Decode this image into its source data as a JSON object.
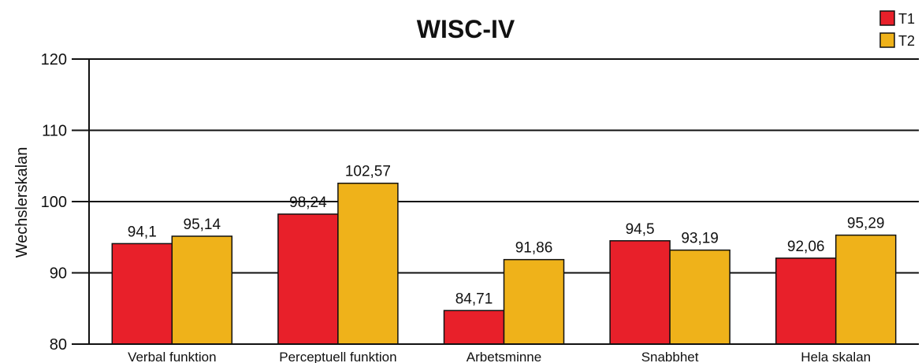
{
  "chart_data": {
    "type": "bar",
    "title": "WISC-IV",
    "ylabel": "Wechslerskalan",
    "xlabel": "",
    "ylim": [
      80,
      120
    ],
    "yticks": [
      80,
      90,
      100,
      110,
      120
    ],
    "grid": true,
    "legend_position": "top-right",
    "categories": [
      "Verbal funktion",
      "Perceptuell funktion",
      "Arbetsminne",
      "Snabbhet",
      "Hela skalan"
    ],
    "series": [
      {
        "name": "T1",
        "color": "#e8202a",
        "values": [
          94.1,
          98.24,
          84.71,
          94.5,
          92.06
        ],
        "labels": [
          "94,1",
          "98,24",
          "84,71",
          "94,5",
          "92,06"
        ]
      },
      {
        "name": "T2",
        "color": "#efb21a",
        "values": [
          95.14,
          102.57,
          91.86,
          93.19,
          95.29
        ],
        "labels": [
          "95,14",
          "102,57",
          "91,86",
          "93,19",
          "95,29"
        ]
      }
    ]
  }
}
